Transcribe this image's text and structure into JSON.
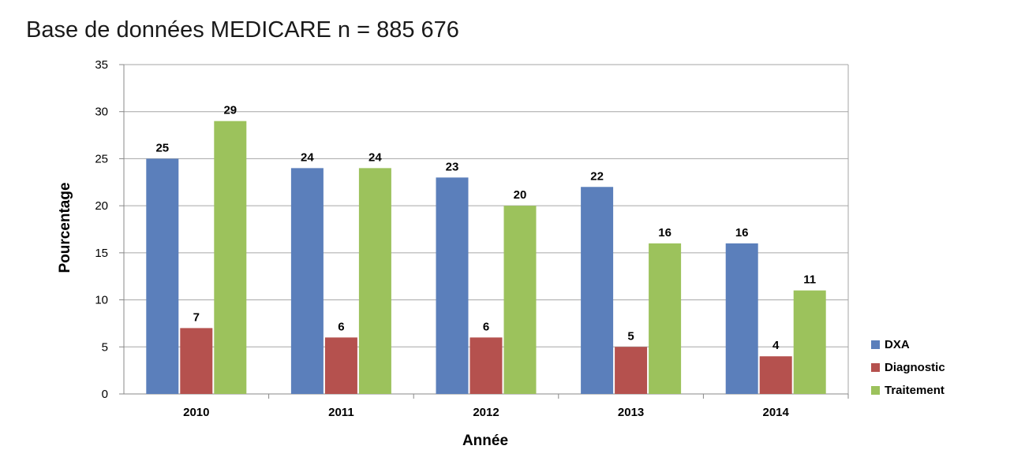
{
  "chart_data": {
    "type": "bar",
    "title": "Base de données MEDICARE n = 885 676",
    "xlabel": "Année",
    "ylabel": "Pourcentage",
    "categories": [
      "2010",
      "2011",
      "2012",
      "2013",
      "2014"
    ],
    "series": [
      {
        "name": "DXA",
        "color": "#5b7fbb",
        "values": [
          25,
          24,
          23,
          22,
          16
        ]
      },
      {
        "name": "Diagnostic",
        "color": "#b5514e",
        "values": [
          7,
          6,
          6,
          5,
          4
        ]
      },
      {
        "name": "Traitement",
        "color": "#9cc25c",
        "values": [
          29,
          24,
          20,
          16,
          11
        ]
      }
    ],
    "ylim": [
      0,
      35
    ],
    "yticks": [
      0,
      5,
      10,
      15,
      20,
      25,
      30,
      35
    ],
    "grid": true,
    "legend": "right",
    "data_labels": true
  }
}
